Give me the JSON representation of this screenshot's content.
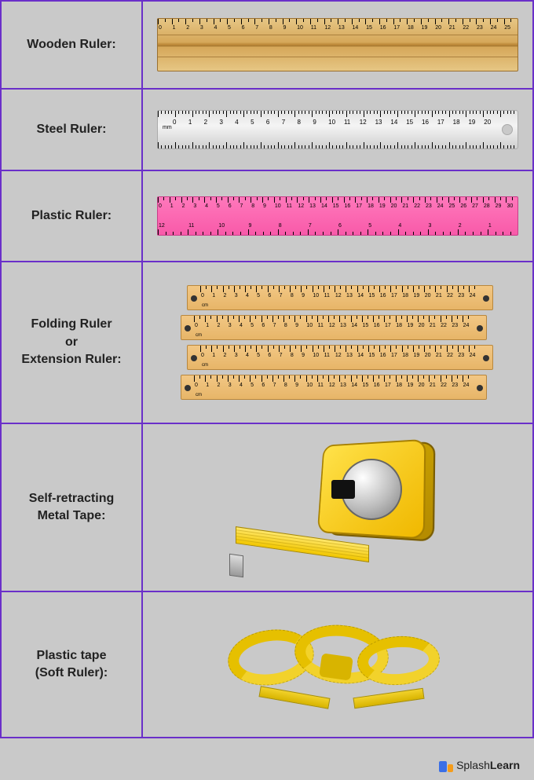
{
  "background_color": "#c9c9c9",
  "border_color": "#6a2fc9",
  "label_fontsize": 16,
  "label_fontweight": 700,
  "label_color": "#222222",
  "brand": {
    "prefix": "Splash",
    "bold": "Learn"
  },
  "rows": [
    {
      "id": "wooden",
      "label_lines": [
        "Wooden Ruler:"
      ],
      "ruler": {
        "type": "wooden",
        "background_gradient": [
          "#e6c684",
          "#d6a85a",
          "#b98535",
          "#d6a85a",
          "#e6c684"
        ],
        "tick_range": [
          0,
          25
        ],
        "tick_step": 1,
        "numbers": [
          "0",
          "1",
          "2",
          "3",
          "4",
          "5",
          "6",
          "7",
          "8",
          "9",
          "10",
          "11",
          "12",
          "13",
          "14",
          "15",
          "16",
          "17",
          "18",
          "19",
          "20",
          "21",
          "22",
          "23",
          "24",
          "25"
        ]
      }
    },
    {
      "id": "steel",
      "label_lines": [
        "Steel Ruler:"
      ],
      "ruler": {
        "type": "steel",
        "background_gradient": [
          "#e3e3e3",
          "#f4f4f4",
          "#cfcfcf"
        ],
        "unit_label": "mm",
        "tick_range": [
          0,
          20
        ],
        "tick_step": 1,
        "numbers": [
          "0",
          "1",
          "2",
          "3",
          "4",
          "5",
          "6",
          "7",
          "8",
          "9",
          "10",
          "11",
          "12",
          "13",
          "14",
          "15",
          "16",
          "17",
          "18",
          "19",
          "20"
        ]
      }
    },
    {
      "id": "plastic",
      "label_lines": [
        "Plastic Ruler:"
      ],
      "ruler": {
        "type": "plastic",
        "background_gradient": [
          "#ff78bb",
          "#f85aa9"
        ],
        "tick_range_top": [
          0,
          30
        ],
        "tick_step_top": 1,
        "tick_range_bot": [
          1,
          12
        ],
        "tick_step_bot": 1,
        "numbers_top": [
          "0",
          "1",
          "2",
          "3",
          "4",
          "5",
          "6",
          "7",
          "8",
          "9",
          "10",
          "11",
          "12",
          "13",
          "14",
          "15",
          "16",
          "17",
          "18",
          "19",
          "20",
          "21",
          "22",
          "23",
          "24",
          "25",
          "26",
          "27",
          "28",
          "29",
          "30"
        ],
        "numbers_bot": [
          "12",
          "11",
          "10",
          "9",
          "8",
          "7",
          "6",
          "5",
          "4",
          "3",
          "2",
          "1"
        ]
      }
    },
    {
      "id": "folding",
      "label_lines": [
        "Folding Ruler",
        "or",
        "Extension Ruler:"
      ],
      "ruler": {
        "type": "folding",
        "segment_color": [
          "#f2c784",
          "#e7b568"
        ],
        "segments": 4,
        "unit_label": "cm",
        "numbers": [
          "0",
          "1",
          "2",
          "3",
          "4",
          "5",
          "6",
          "7",
          "8",
          "9",
          "10",
          "11",
          "12",
          "13",
          "14",
          "15",
          "16",
          "17",
          "18",
          "19",
          "20",
          "21",
          "22",
          "23",
          "24"
        ]
      }
    },
    {
      "id": "metaltape",
      "label_lines": [
        "Self-retracting",
        "Metal Tape:"
      ],
      "ruler": {
        "type": "tape-measure",
        "body_color": [
          "#ffe24a",
          "#f0b800"
        ],
        "disc_color": [
          "#ffffff",
          "#bcbcbc",
          "#7d7d7d"
        ],
        "blade_color": [
          "#ffe76a",
          "#f2c700"
        ],
        "button_color": "#111111"
      }
    },
    {
      "id": "softtape",
      "label_lines": [
        "Plastic tape",
        "(Soft Ruler):"
      ],
      "ruler": {
        "type": "soft-tape",
        "tape_color": "#f2d22b",
        "tape_shadow": "#d8b400"
      }
    }
  ]
}
